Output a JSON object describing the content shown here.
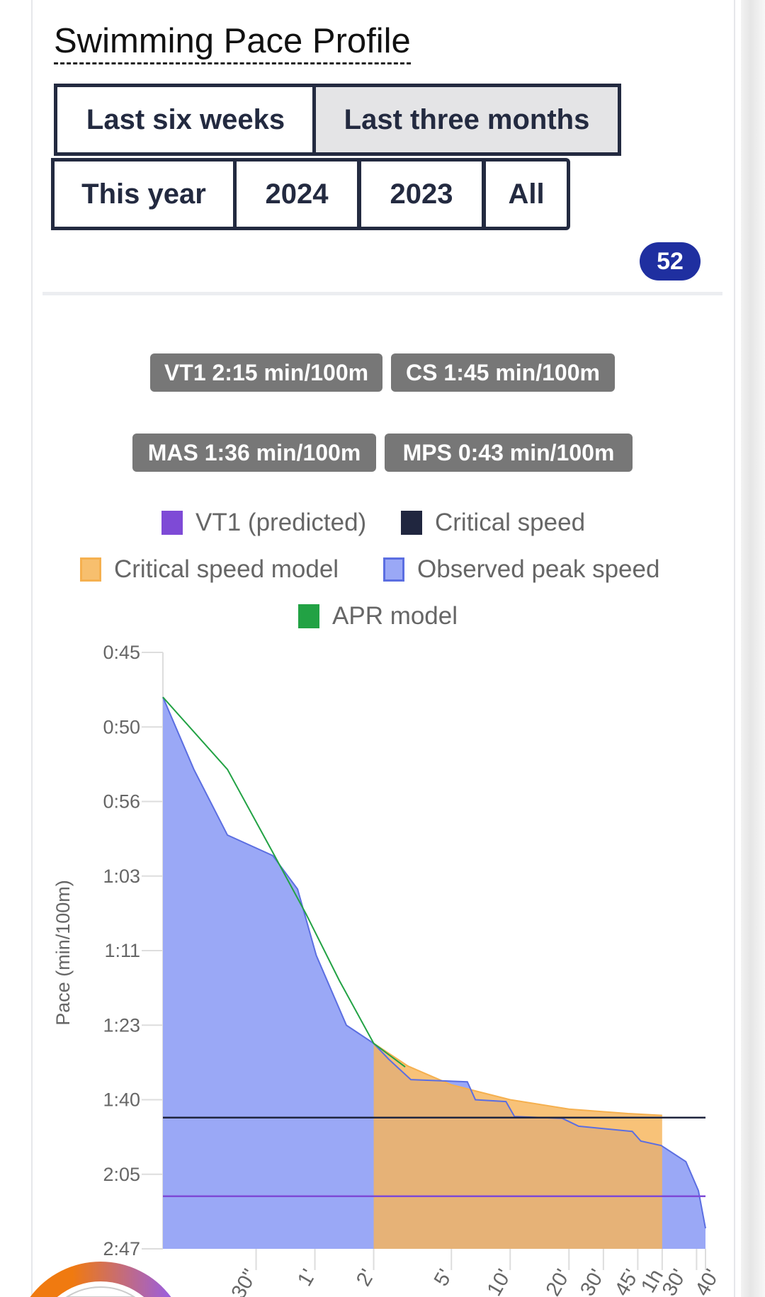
{
  "title": "Swimming Pace Profile",
  "filters": [
    {
      "label": "Last six weeks",
      "active": false
    },
    {
      "label": "Last three months",
      "active": true
    },
    {
      "label": "This year",
      "active": false
    },
    {
      "label": "2024",
      "active": false
    },
    {
      "label": "2023",
      "active": false
    },
    {
      "label": "All",
      "active": false
    }
  ],
  "count_badge": "52",
  "chips": [
    "VT1 2:15 min/100m",
    "CS 1:45 min/100m",
    "MAS 1:36 min/100m",
    "MPS 0:43 min/100m"
  ],
  "legend": [
    {
      "label": "VT1 (predicted)",
      "color": "#7e4ad6"
    },
    {
      "label": "Critical speed",
      "color": "#20263f"
    },
    {
      "label": "Critical speed model",
      "color": "#f7bf6e"
    },
    {
      "label": "Observed peak speed",
      "color": "#9aa8f6"
    },
    {
      "label": "APR model",
      "color": "#22a244"
    }
  ],
  "chart_data": {
    "type": "area",
    "ylabel": "Pace (min/100m)",
    "y_unit": "speed m/s (labels shown as pace)",
    "ylim": [
      0.6,
      2.2
    ],
    "y_ticks": [
      {
        "speed": 2.2,
        "label": "0:45"
      },
      {
        "speed": 2.0,
        "label": "0:50"
      },
      {
        "speed": 1.8,
        "label": "0:56"
      },
      {
        "speed": 1.6,
        "label": "1:03"
      },
      {
        "speed": 1.4,
        "label": "1:11"
      },
      {
        "speed": 1.2,
        "label": "1:23"
      },
      {
        "speed": 1.0,
        "label": "1:40"
      },
      {
        "speed": 0.8,
        "label": "2:05"
      },
      {
        "speed": 0.6,
        "label": "2:47"
      }
    ],
    "x_scale": "log duration (s)",
    "xlim": [
      10,
      6000
    ],
    "x_ticks": [
      {
        "t": 30,
        "label": "30\""
      },
      {
        "t": 60,
        "label": "1'"
      },
      {
        "t": 120,
        "label": "2'"
      },
      {
        "t": 300,
        "label": "5'"
      },
      {
        "t": 600,
        "label": "10'"
      },
      {
        "t": 1200,
        "label": "20'"
      },
      {
        "t": 1800,
        "label": "30'"
      },
      {
        "t": 2700,
        "label": "45'"
      },
      {
        "t": 3600,
        "label": "1h"
      },
      {
        "t": 5400,
        "label": "30'"
      },
      {
        "t": 6000,
        "label": "40'"
      }
    ],
    "series": {
      "observed": [
        [
          10,
          2.08
        ],
        [
          14.4,
          1.886
        ],
        [
          21.4,
          1.71
        ],
        [
          36.5,
          1.655
        ],
        [
          48.9,
          1.565
        ],
        [
          61,
          1.387
        ],
        [
          87,
          1.2
        ],
        [
          120,
          1.151
        ],
        [
          143,
          1.109
        ],
        [
          186,
          1.054
        ],
        [
          362,
          1.048
        ],
        [
          398,
          1.0
        ],
        [
          571,
          0.995
        ],
        [
          631,
          0.955
        ],
        [
          1110,
          0.95
        ],
        [
          1345,
          0.929
        ],
        [
          2530,
          0.915
        ],
        [
          2800,
          0.889
        ],
        [
          3560,
          0.877
        ],
        [
          4760,
          0.834
        ],
        [
          5520,
          0.756
        ],
        [
          6000,
          0.655
        ]
      ],
      "cs_model": [
        [
          120,
          1.151
        ],
        [
          180,
          1.09
        ],
        [
          300,
          1.04
        ],
        [
          600,
          1.0
        ],
        [
          1200,
          0.975
        ],
        [
          2400,
          0.963
        ],
        [
          3600,
          0.958
        ]
      ],
      "apr_model": [
        [
          10,
          2.08
        ],
        [
          21.4,
          1.886
        ],
        [
          36.5,
          1.664
        ],
        [
          54,
          1.499
        ],
        [
          80,
          1.32
        ],
        [
          120,
          1.151
        ],
        [
          174,
          1.088
        ]
      ],
      "critical_speed": 0.952,
      "vt1": 0.741
    }
  }
}
